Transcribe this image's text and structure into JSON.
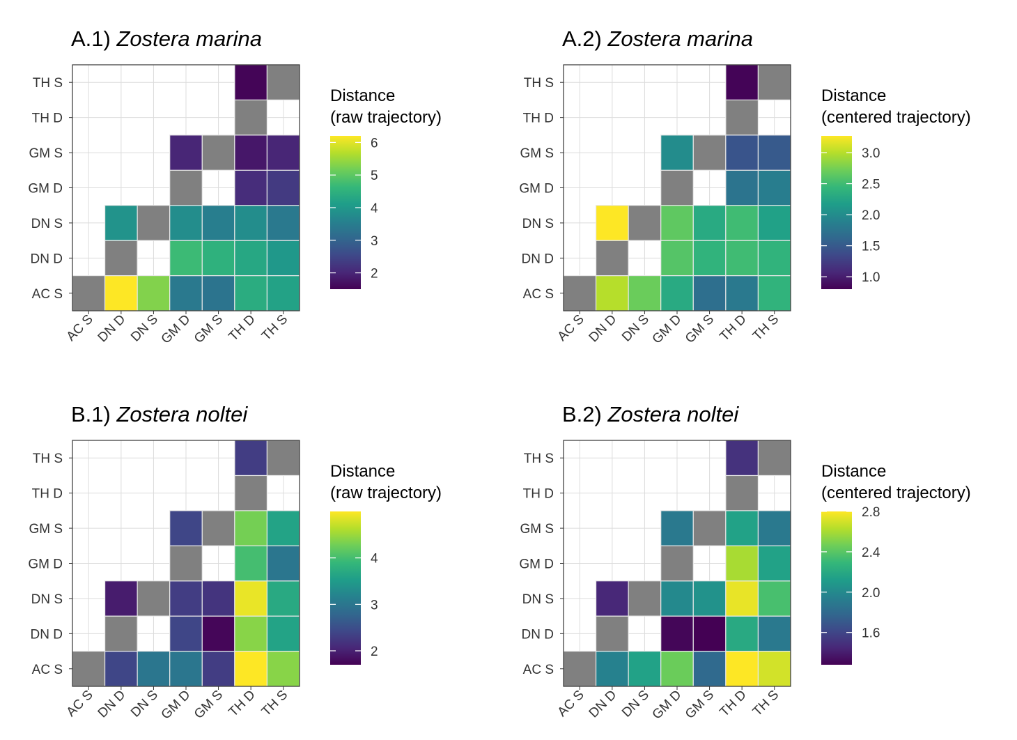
{
  "colors": {
    "missing_cell": "#808080",
    "grid": "#dcdcdc",
    "panel_border": "#333333",
    "cell_border": "#e8e8e8",
    "colormap": "viridis"
  },
  "chart_data": [
    {
      "type": "heatmap",
      "title_prefix": "A.1)",
      "title_species": "Zostera marina",
      "x_categories": [
        "AC S",
        "DN D",
        "DN S",
        "GM D",
        "GM S",
        "TH D",
        "TH S"
      ],
      "y_categories": [
        "AC S",
        "DN D",
        "DN S",
        "GM D",
        "GM S",
        "TH D",
        "TH S"
      ],
      "legend_title": [
        "Distance",
        "(raw trajectory)"
      ],
      "legend_ticks": [
        "2",
        "3",
        "4",
        "5",
        "6"
      ],
      "legend_tick_values": [
        2,
        3,
        4,
        5,
        6
      ],
      "color_range": [
        1.5,
        6.2
      ],
      "cells": [
        {
          "x": "AC S",
          "y": "AC S",
          "value": null
        },
        {
          "x": "DN D",
          "y": "AC S",
          "value": 6.2
        },
        {
          "x": "DN S",
          "y": "AC S",
          "value": 5.3
        },
        {
          "x": "GM D",
          "y": "AC S",
          "value": 3.4
        },
        {
          "x": "GM S",
          "y": "AC S",
          "value": 3.3
        },
        {
          "x": "TH D",
          "y": "AC S",
          "value": 4.4
        },
        {
          "x": "TH S",
          "y": "AC S",
          "value": 4.2
        },
        {
          "x": "DN D",
          "y": "DN D",
          "value": null
        },
        {
          "x": "GM D",
          "y": "DN D",
          "value": 4.7
        },
        {
          "x": "GM S",
          "y": "DN D",
          "value": 4.5
        },
        {
          "x": "TH D",
          "y": "DN D",
          "value": 4.3
        },
        {
          "x": "TH S",
          "y": "DN D",
          "value": 4.0
        },
        {
          "x": "DN D",
          "y": "DN S",
          "value": 3.9
        },
        {
          "x": "DN S",
          "y": "DN S",
          "value": null
        },
        {
          "x": "GM D",
          "y": "DN S",
          "value": 3.8
        },
        {
          "x": "GM S",
          "y": "DN S",
          "value": 3.5
        },
        {
          "x": "TH D",
          "y": "DN S",
          "value": 3.8
        },
        {
          "x": "TH S",
          "y": "DN S",
          "value": 3.4
        },
        {
          "x": "GM D",
          "y": "GM D",
          "value": null
        },
        {
          "x": "TH D",
          "y": "GM D",
          "value": 2.1
        },
        {
          "x": "TH S",
          "y": "GM D",
          "value": 2.3
        },
        {
          "x": "GM D",
          "y": "GM S",
          "value": 2.0
        },
        {
          "x": "GM S",
          "y": "GM S",
          "value": null
        },
        {
          "x": "TH D",
          "y": "GM S",
          "value": 1.8
        },
        {
          "x": "TH S",
          "y": "GM S",
          "value": 2.0
        },
        {
          "x": "TH D",
          "y": "TH D",
          "value": null
        },
        {
          "x": "TH D",
          "y": "TH S",
          "value": 1.55
        },
        {
          "x": "TH S",
          "y": "TH S",
          "value": null
        }
      ]
    },
    {
      "type": "heatmap",
      "title_prefix": "A.2)",
      "title_species": "Zostera marina",
      "x_categories": [
        "AC S",
        "DN D",
        "DN S",
        "GM D",
        "GM S",
        "TH D",
        "TH S"
      ],
      "y_categories": [
        "AC S",
        "DN D",
        "DN S",
        "GM D",
        "GM S",
        "TH D",
        "TH S"
      ],
      "legend_title": [
        "Distance",
        "(centered trajectory)"
      ],
      "legend_ticks": [
        "1.0",
        "1.5",
        "2.0",
        "2.5",
        "3.0"
      ],
      "legend_tick_values": [
        1.0,
        1.5,
        2.0,
        2.5,
        3.0
      ],
      "color_range": [
        0.8,
        3.27
      ],
      "cells": [
        {
          "x": "AC S",
          "y": "AC S",
          "value": null
        },
        {
          "x": "DN D",
          "y": "AC S",
          "value": 3.0
        },
        {
          "x": "DN S",
          "y": "AC S",
          "value": 2.7
        },
        {
          "x": "GM D",
          "y": "AC S",
          "value": 2.3
        },
        {
          "x": "GM S",
          "y": "AC S",
          "value": 1.7
        },
        {
          "x": "TH D",
          "y": "AC S",
          "value": 1.8
        },
        {
          "x": "TH S",
          "y": "AC S",
          "value": 2.4
        },
        {
          "x": "DN D",
          "y": "DN D",
          "value": null
        },
        {
          "x": "GM D",
          "y": "DN D",
          "value": 2.6
        },
        {
          "x": "GM S",
          "y": "DN D",
          "value": 2.4
        },
        {
          "x": "TH D",
          "y": "DN D",
          "value": 2.5
        },
        {
          "x": "TH S",
          "y": "DN D",
          "value": 2.4
        },
        {
          "x": "DN D",
          "y": "DN S",
          "value": 3.27
        },
        {
          "x": "DN S",
          "y": "DN S",
          "value": null
        },
        {
          "x": "GM D",
          "y": "DN S",
          "value": 2.65
        },
        {
          "x": "GM S",
          "y": "DN S",
          "value": 2.3
        },
        {
          "x": "TH D",
          "y": "DN S",
          "value": 2.5
        },
        {
          "x": "TH S",
          "y": "DN S",
          "value": 2.2
        },
        {
          "x": "GM D",
          "y": "GM D",
          "value": null
        },
        {
          "x": "TH D",
          "y": "GM D",
          "value": 1.75
        },
        {
          "x": "TH S",
          "y": "GM D",
          "value": 1.85
        },
        {
          "x": "GM D",
          "y": "GM S",
          "value": 2.0
        },
        {
          "x": "GM S",
          "y": "GM S",
          "value": null
        },
        {
          "x": "TH D",
          "y": "GM S",
          "value": 1.45
        },
        {
          "x": "TH S",
          "y": "GM S",
          "value": 1.5
        },
        {
          "x": "TH D",
          "y": "TH D",
          "value": null
        },
        {
          "x": "TH D",
          "y": "TH S",
          "value": 0.82
        },
        {
          "x": "TH S",
          "y": "TH S",
          "value": null
        }
      ]
    },
    {
      "type": "heatmap",
      "title_prefix": "B.1)",
      "title_species": "Zostera noltei",
      "x_categories": [
        "AC S",
        "DN D",
        "DN S",
        "GM D",
        "GM S",
        "TH D",
        "TH S"
      ],
      "y_categories": [
        "AC S",
        "DN D",
        "DN S",
        "GM D",
        "GM S",
        "TH D",
        "TH S"
      ],
      "legend_title": [
        "Distance",
        "(raw trajectory)"
      ],
      "legend_ticks": [
        "2",
        "3",
        "4"
      ],
      "legend_tick_values": [
        2,
        3,
        4
      ],
      "color_range": [
        1.7,
        5.0
      ],
      "cells": [
        {
          "x": "AC S",
          "y": "AC S",
          "value": null
        },
        {
          "x": "DN D",
          "y": "AC S",
          "value": 2.4
        },
        {
          "x": "DN S",
          "y": "AC S",
          "value": 3.0
        },
        {
          "x": "GM D",
          "y": "AC S",
          "value": 3.0
        },
        {
          "x": "GM S",
          "y": "AC S",
          "value": 2.3
        },
        {
          "x": "TH D",
          "y": "AC S",
          "value": 5.0
        },
        {
          "x": "TH S",
          "y": "AC S",
          "value": 4.4
        },
        {
          "x": "DN D",
          "y": "DN D",
          "value": null
        },
        {
          "x": "GM D",
          "y": "DN D",
          "value": 2.4
        },
        {
          "x": "GM S",
          "y": "DN D",
          "value": 1.75
        },
        {
          "x": "TH D",
          "y": "DN D",
          "value": 4.4
        },
        {
          "x": "TH S",
          "y": "DN D",
          "value": 3.6
        },
        {
          "x": "DN D",
          "y": "DN S",
          "value": 1.95
        },
        {
          "x": "DN S",
          "y": "DN S",
          "value": null
        },
        {
          "x": "GM D",
          "y": "DN S",
          "value": 2.3
        },
        {
          "x": "GM S",
          "y": "DN S",
          "value": 2.2
        },
        {
          "x": "TH D",
          "y": "DN S",
          "value": 4.9
        },
        {
          "x": "TH S",
          "y": "DN S",
          "value": 3.7
        },
        {
          "x": "GM D",
          "y": "GM D",
          "value": null
        },
        {
          "x": "TH D",
          "y": "GM D",
          "value": 4.0
        },
        {
          "x": "TH S",
          "y": "GM D",
          "value": 3.0
        },
        {
          "x": "GM D",
          "y": "GM S",
          "value": 2.4
        },
        {
          "x": "GM S",
          "y": "GM S",
          "value": null
        },
        {
          "x": "TH D",
          "y": "GM S",
          "value": 4.3
        },
        {
          "x": "TH S",
          "y": "GM S",
          "value": 3.6
        },
        {
          "x": "TH D",
          "y": "TH D",
          "value": null
        },
        {
          "x": "TH D",
          "y": "TH S",
          "value": 2.3
        },
        {
          "x": "TH S",
          "y": "TH S",
          "value": null
        }
      ]
    },
    {
      "type": "heatmap",
      "title_prefix": "B.2)",
      "title_species": "Zostera noltei",
      "x_categories": [
        "AC S",
        "DN D",
        "DN S",
        "GM D",
        "GM S",
        "TH D",
        "TH S"
      ],
      "y_categories": [
        "AC S",
        "DN D",
        "DN S",
        "GM D",
        "GM S",
        "TH D",
        "TH S"
      ],
      "legend_title": [
        "Distance",
        "(centered trajectory)"
      ],
      "legend_ticks": [
        "1.6",
        "2.0",
        "2.4",
        "2.8"
      ],
      "legend_tick_values": [
        1.6,
        2.0,
        2.4,
        2.8
      ],
      "color_range": [
        1.28,
        2.8
      ],
      "cells": [
        {
          "x": "AC S",
          "y": "AC S",
          "value": null
        },
        {
          "x": "DN D",
          "y": "AC S",
          "value": 1.95
        },
        {
          "x": "DN S",
          "y": "AC S",
          "value": 2.15
        },
        {
          "x": "GM D",
          "y": "AC S",
          "value": 2.45
        },
        {
          "x": "GM S",
          "y": "AC S",
          "value": 1.8
        },
        {
          "x": "TH D",
          "y": "AC S",
          "value": 2.8
        },
        {
          "x": "TH S",
          "y": "AC S",
          "value": 2.7
        },
        {
          "x": "DN D",
          "y": "DN D",
          "value": null
        },
        {
          "x": "GM D",
          "y": "DN D",
          "value": 1.3
        },
        {
          "x": "GM S",
          "y": "DN D",
          "value": 1.28
        },
        {
          "x": "TH D",
          "y": "DN D",
          "value": 2.2
        },
        {
          "x": "TH S",
          "y": "DN D",
          "value": 1.9
        },
        {
          "x": "DN D",
          "y": "DN S",
          "value": 1.45
        },
        {
          "x": "DN S",
          "y": "DN S",
          "value": null
        },
        {
          "x": "GM D",
          "y": "DN S",
          "value": 2.0
        },
        {
          "x": "GM S",
          "y": "DN S",
          "value": 2.05
        },
        {
          "x": "TH D",
          "y": "DN S",
          "value": 2.75
        },
        {
          "x": "TH S",
          "y": "DN S",
          "value": 2.35
        },
        {
          "x": "GM D",
          "y": "GM D",
          "value": null
        },
        {
          "x": "TH D",
          "y": "GM D",
          "value": 2.6
        },
        {
          "x": "TH S",
          "y": "GM D",
          "value": 2.15
        },
        {
          "x": "GM D",
          "y": "GM S",
          "value": 1.9
        },
        {
          "x": "GM S",
          "y": "GM S",
          "value": null
        },
        {
          "x": "TH D",
          "y": "GM S",
          "value": 2.15
        },
        {
          "x": "TH S",
          "y": "GM S",
          "value": 1.9
        },
        {
          "x": "TH D",
          "y": "TH D",
          "value": null
        },
        {
          "x": "TH D",
          "y": "TH S",
          "value": 1.5
        },
        {
          "x": "TH S",
          "y": "TH S",
          "value": null
        }
      ]
    }
  ]
}
